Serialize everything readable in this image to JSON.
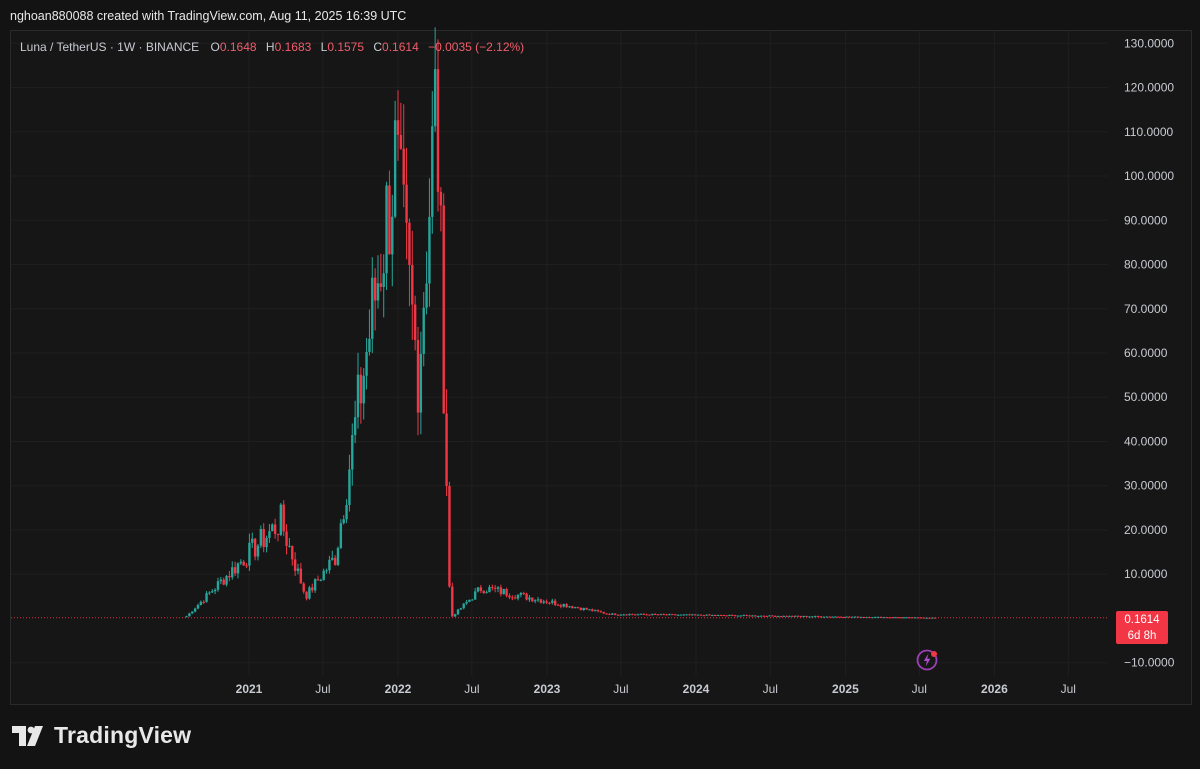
{
  "header": {
    "credit": "nghoan880088 created with TradingView.com, Aug 11, 2025 16:39 UTC"
  },
  "legend": {
    "symbol": "Luna / TetherUS · 1W · BINANCE",
    "open_label": "O",
    "open": "0.1648",
    "high_label": "H",
    "high": "0.1683",
    "low_label": "L",
    "low": "0.1575",
    "close_label": "C",
    "close": "0.1614",
    "change": "−0.0035 (−2.12%)"
  },
  "price_tag": {
    "price": "0.1614",
    "countdown": "6d 8h"
  },
  "watermark": {
    "text": "TradingView"
  },
  "colors": {
    "up": "#26a69a",
    "down": "#f23645",
    "background": "#161616",
    "grid": "#1f1f1f"
  },
  "icons": {
    "lightning": "lightning-icon",
    "logo": "tradingview-logo"
  },
  "chart_data": {
    "type": "candlestick",
    "interval": "1W",
    "y_axis": {
      "ticks": [
        "130.0000",
        "120.0000",
        "110.0000",
        "100.0000",
        "90.0000",
        "80.0000",
        "70.0000",
        "60.0000",
        "50.0000",
        "40.0000",
        "30.0000",
        "20.0000",
        "10.0000",
        "−10.0000"
      ],
      "tick_values": [
        130,
        120,
        110,
        100,
        90,
        80,
        70,
        60,
        50,
        40,
        30,
        20,
        10,
        -10
      ],
      "range": [
        -13,
        133
      ],
      "position": "right"
    },
    "x_axis": {
      "ticks": [
        {
          "label": "2021",
          "date": "2021-01-01",
          "bold": true
        },
        {
          "label": "Jul",
          "date": "2021-07-01",
          "bold": false
        },
        {
          "label": "2022",
          "date": "2022-01-01",
          "bold": true
        },
        {
          "label": "Jul",
          "date": "2022-07-01",
          "bold": false
        },
        {
          "label": "2023",
          "date": "2023-01-01",
          "bold": true
        },
        {
          "label": "Jul",
          "date": "2023-07-01",
          "bold": false
        },
        {
          "label": "2024",
          "date": "2024-01-01",
          "bold": true
        },
        {
          "label": "Jul",
          "date": "2024-07-01",
          "bold": false
        },
        {
          "label": "2025",
          "date": "2025-01-01",
          "bold": true
        },
        {
          "label": "Jul",
          "date": "2025-07-01",
          "bold": false
        },
        {
          "label": "2026",
          "date": "2026-01-01",
          "bold": true
        },
        {
          "label": "Jul",
          "date": "2026-07-01",
          "bold": false
        }
      ]
    },
    "last_price": 0.1614,
    "key_points": [
      {
        "date": "2020-08-01",
        "close": 0.5
      },
      {
        "date": "2021-03-20",
        "close": 22
      },
      {
        "date": "2021-05-20",
        "close": 5
      },
      {
        "date": "2021-08-01",
        "close": 14
      },
      {
        "date": "2021-12-25",
        "close": 103
      },
      {
        "date": "2022-02-20",
        "close": 55
      },
      {
        "date": "2022-04-05",
        "close": 119
      },
      {
        "date": "2022-05-09",
        "close": 0.0
      },
      {
        "date": "2022-07-25",
        "close": 7
      },
      {
        "date": "2023-06-01",
        "close": 1.0
      },
      {
        "date": "2025-08-11",
        "close": 0.1614
      }
    ]
  }
}
